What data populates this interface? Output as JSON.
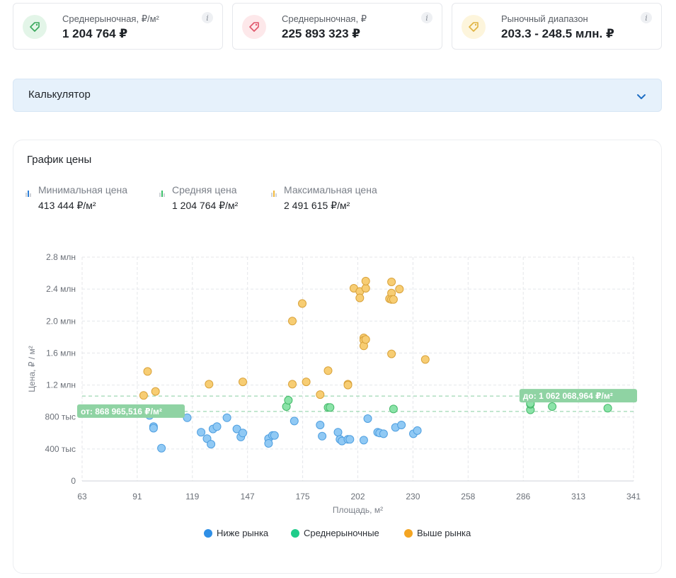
{
  "stats": [
    {
      "label": "Среднерыночная, ₽/м²",
      "value": "1 204 764 ₽",
      "icon": "price-tag-icon",
      "icon_bg": "#e3f5e8",
      "icon_color": "#3aa85c"
    },
    {
      "label": "Среднерыночная, ₽",
      "value": "225 893 323 ₽",
      "icon": "price-tag-icon",
      "icon_bg": "#fde8ea",
      "icon_color": "#e0566a"
    },
    {
      "label": "Рыночный диапазон",
      "value": "203.3 - 248.5 млн. ₽",
      "icon": "price-tag-icon",
      "icon_bg": "#fdf5dc",
      "icon_color": "#e0b340"
    }
  ],
  "info_glyph": "i",
  "calculator": {
    "label": "Калькулятор",
    "chevron": "chevron-down-icon"
  },
  "chart_section": {
    "title": "График цены",
    "summary": [
      {
        "label": "Минимальная цена",
        "value": "413 444 ₽/м²",
        "color": "#2f7fd6"
      },
      {
        "label": "Средняя цена",
        "value": "1 204 764 ₽/м²",
        "color": "#3cc06a"
      },
      {
        "label": "Максимальная цена",
        "value": "2 491 615 ₽/м²",
        "color": "#f0b83c"
      }
    ]
  },
  "chart_data": {
    "type": "scatter",
    "title": "",
    "xlabel": "Площадь, м²",
    "ylabel": "Цена, ₽ / м²",
    "xlim": [
      63,
      341
    ],
    "ylim": [
      0,
      2800000
    ],
    "x_ticks": [
      "63",
      "91",
      "119",
      "147",
      "175",
      "202",
      "230",
      "258",
      "286",
      "313",
      "341"
    ],
    "y_ticks": [
      "0",
      "400 тыс",
      "800 тыс",
      "1.2 млн",
      "1.6 млн",
      "2.0 млн",
      "2.4 млн",
      "2.8 млн"
    ],
    "grid": true,
    "legend_position": "bottom",
    "reference_lines": [
      {
        "label": "от: 868 965,516 ₽/м²",
        "y": 868965.516
      },
      {
        "label": "до: 1 062 068,964 ₽/м²",
        "y": 1062068.964
      }
    ],
    "series": [
      {
        "name": "Ниже рынка",
        "color": "#2f8fe6",
        "fill": "#90c9f4",
        "stroke": "#4f9fe0",
        "points": [
          [
            95,
            860000
          ],
          [
            97,
            820000
          ],
          [
            99,
            680000
          ],
          [
            99,
            660000
          ],
          [
            103,
            410000
          ],
          [
            116,
            790000
          ],
          [
            123,
            610000
          ],
          [
            126,
            530000
          ],
          [
            128,
            460000
          ],
          [
            129,
            650000
          ],
          [
            131,
            680000
          ],
          [
            136,
            790000
          ],
          [
            141,
            650000
          ],
          [
            143,
            550000
          ],
          [
            144,
            600000
          ],
          [
            157,
            530000
          ],
          [
            157,
            470000
          ],
          [
            159,
            570000
          ],
          [
            160,
            570000
          ],
          [
            170,
            750000
          ],
          [
            183,
            700000
          ],
          [
            184,
            560000
          ],
          [
            192,
            610000
          ],
          [
            193,
            520000
          ],
          [
            194,
            500000
          ],
          [
            197,
            520000
          ],
          [
            198,
            520000
          ],
          [
            205,
            510000
          ],
          [
            207,
            780000
          ],
          [
            212,
            610000
          ],
          [
            213,
            600000
          ],
          [
            215,
            590000
          ],
          [
            221,
            670000
          ],
          [
            224,
            700000
          ],
          [
            230,
            590000
          ],
          [
            232,
            630000
          ]
        ]
      },
      {
        "name": "Среднерыночные",
        "color": "#1fcc8a",
        "fill": "#8be3a8",
        "stroke": "#45b96a",
        "points": [
          [
            79,
            900000
          ],
          [
            166,
            930000
          ],
          [
            167,
            1010000
          ],
          [
            187,
            920000
          ],
          [
            188,
            920000
          ],
          [
            220,
            900000
          ],
          [
            289,
            890000
          ],
          [
            289,
            960000
          ],
          [
            289,
            970000
          ],
          [
            300,
            930000
          ],
          [
            328,
            910000
          ]
        ]
      },
      {
        "name": "Выше рынка",
        "color": "#f4a522",
        "fill": "#f7cd73",
        "stroke": "#d9a23a",
        "points": [
          [
            94,
            1070000
          ],
          [
            96,
            1370000
          ],
          [
            100,
            1120000
          ],
          [
            127,
            1210000
          ],
          [
            144,
            1240000
          ],
          [
            169,
            2000000
          ],
          [
            169,
            1210000
          ],
          [
            174,
            2220000
          ],
          [
            176,
            1240000
          ],
          [
            183,
            1080000
          ],
          [
            187,
            1380000
          ],
          [
            197,
            1210000
          ],
          [
            197,
            1200000
          ],
          [
            200,
            2410000
          ],
          [
            203,
            2370000
          ],
          [
            203,
            2290000
          ],
          [
            205,
            1790000
          ],
          [
            205,
            1760000
          ],
          [
            205,
            1690000
          ],
          [
            206,
            1770000
          ],
          [
            206,
            2410000
          ],
          [
            206,
            2500000
          ],
          [
            218,
            2280000
          ],
          [
            219,
            2350000
          ],
          [
            219,
            2270000
          ],
          [
            219,
            2490000
          ],
          [
            219,
            1590000
          ],
          [
            220,
            2270000
          ],
          [
            223,
            2400000
          ],
          [
            236,
            1520000
          ]
        ]
      }
    ]
  }
}
